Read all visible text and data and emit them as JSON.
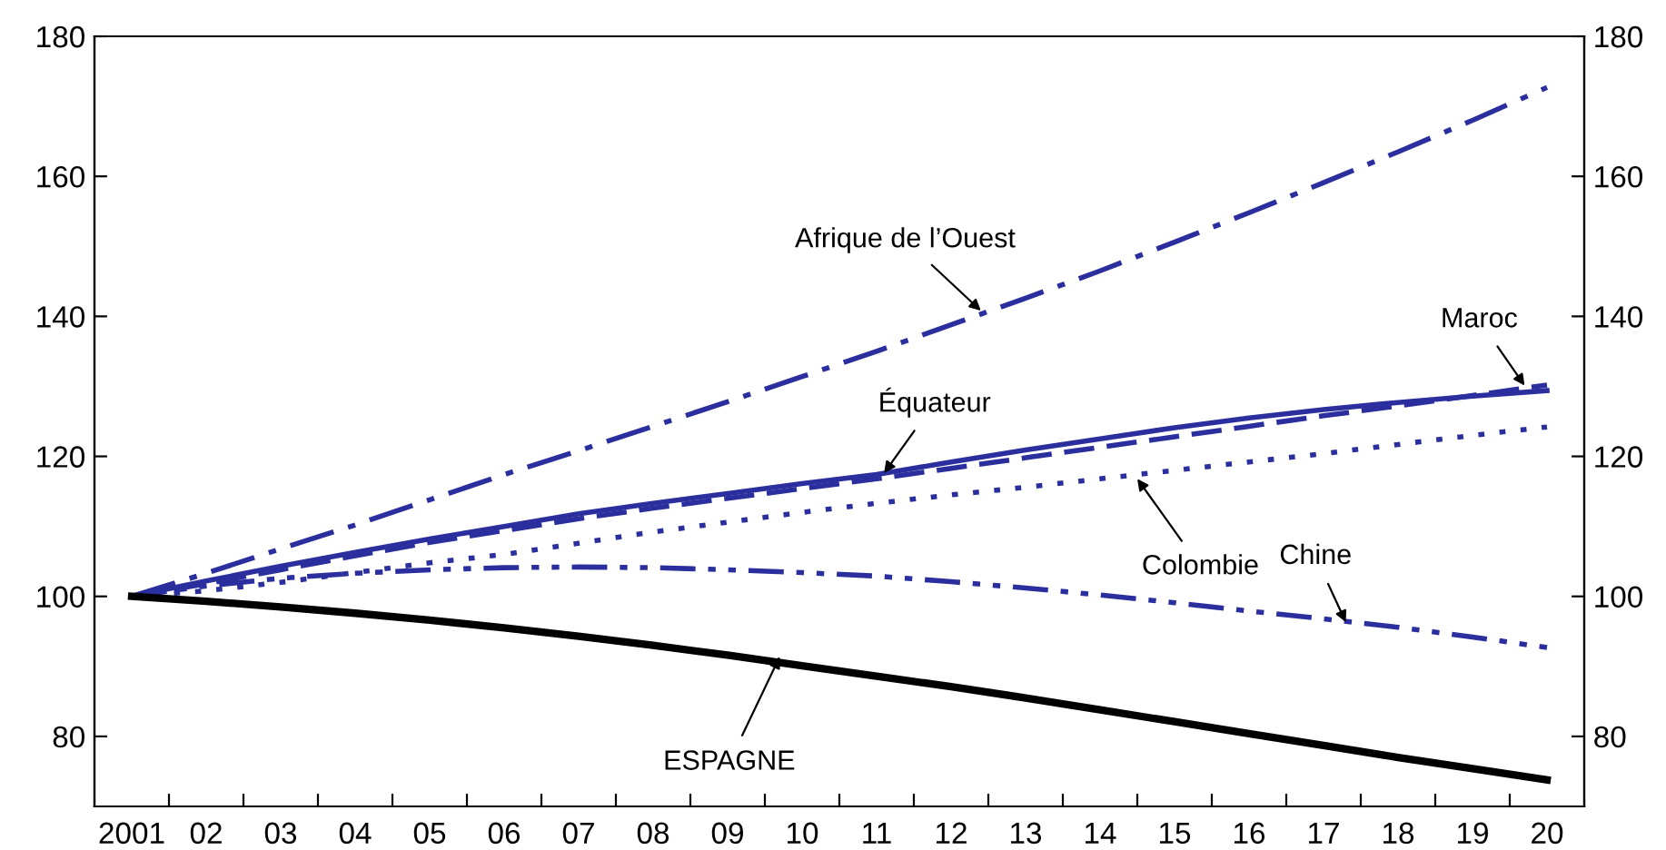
{
  "chart_data": {
    "type": "line",
    "x": [
      2001,
      2002,
      2003,
      2004,
      2005,
      2006,
      2007,
      2008,
      2009,
      2010,
      2011,
      2012,
      2013,
      2014,
      2015,
      2016,
      2017,
      2018,
      2019,
      2020
    ],
    "xlim": [
      2000.5,
      2020.5
    ],
    "xticks": [
      {
        "value": 2001,
        "label": "2001"
      },
      {
        "value": 2002,
        "label": "02"
      },
      {
        "value": 2003,
        "label": "03"
      },
      {
        "value": 2004,
        "label": "04"
      },
      {
        "value": 2005,
        "label": "05"
      },
      {
        "value": 2006,
        "label": "06"
      },
      {
        "value": 2007,
        "label": "07"
      },
      {
        "value": 2008,
        "label": "08"
      },
      {
        "value": 2009,
        "label": "09"
      },
      {
        "value": 2010,
        "label": "10"
      },
      {
        "value": 2011,
        "label": "11"
      },
      {
        "value": 2012,
        "label": "12"
      },
      {
        "value": 2013,
        "label": "13"
      },
      {
        "value": 2014,
        "label": "14"
      },
      {
        "value": 2015,
        "label": "15"
      },
      {
        "value": 2016,
        "label": "16"
      },
      {
        "value": 2017,
        "label": "17"
      },
      {
        "value": 2018,
        "label": "18"
      },
      {
        "value": 2019,
        "label": "19"
      },
      {
        "value": 2020,
        "label": "20"
      },
      {
        "value": 2001.5,
        "label": null
      },
      {
        "value": 2002.5,
        "label": null
      },
      {
        "value": 2003.5,
        "label": null
      },
      {
        "value": 2004.5,
        "label": null
      },
      {
        "value": 2005.5,
        "label": null
      },
      {
        "value": 2006.5,
        "label": null
      },
      {
        "value": 2007.5,
        "label": null
      },
      {
        "value": 2008.5,
        "label": null
      },
      {
        "value": 2009.5,
        "label": null
      },
      {
        "value": 2010.5,
        "label": null
      },
      {
        "value": 2011.5,
        "label": null
      },
      {
        "value": 2012.5,
        "label": null
      },
      {
        "value": 2013.5,
        "label": null
      },
      {
        "value": 2014.5,
        "label": null
      },
      {
        "value": 2015.5,
        "label": null
      },
      {
        "value": 2016.5,
        "label": null
      },
      {
        "value": 2017.5,
        "label": null
      },
      {
        "value": 2018.5,
        "label": null
      },
      {
        "value": 2019.5,
        "label": null
      }
    ],
    "ylim": [
      70,
      180
    ],
    "yticks": [
      80,
      100,
      120,
      140,
      160,
      180
    ],
    "y2lim": [
      70,
      180
    ],
    "y2ticks": [
      80,
      100,
      120,
      140,
      160,
      180
    ],
    "grid": false,
    "legend": false,
    "series": [
      {
        "color": "#2b2f9e",
        "line_style": "dashdot",
        "values": [
          100,
          103.3,
          106.8,
          110.2,
          113.8,
          117.4,
          120.8,
          124.3,
          127.8,
          131.4,
          135,
          138.8,
          142.6,
          146.5,
          150.6,
          154.8,
          159.1,
          163.5,
          168,
          172.7
        ]
      },
      {
        "color": "#2b2f9e",
        "line_style": "dashed",
        "values": [
          100,
          101.8,
          103.8,
          105.8,
          107.7,
          109.4,
          111.1,
          112.6,
          114,
          115.4,
          116.8,
          118.3,
          119.8,
          121.3,
          122.8,
          124.3,
          125.8,
          127.2,
          128.7,
          130.2
        ]
      },
      {
        "color": "#2b2f9e",
        "line_style": "solid",
        "values": [
          100,
          102.2,
          104.3,
          106.3,
          108.2,
          110,
          111.8,
          113.3,
          114.7,
          116.1,
          117.4,
          119.2,
          120.9,
          122.5,
          124.1,
          125.5,
          126.7,
          127.7,
          128.6,
          129.4
        ]
      },
      {
        "color": "#2b2f9e",
        "line_style": "dotted",
        "values": [
          100,
          100.8,
          102,
          103.4,
          104.8,
          106,
          107.6,
          109.2,
          110.6,
          112,
          113.3,
          114.5,
          115.6,
          116.8,
          118,
          119.2,
          120.4,
          121.7,
          123,
          124.2
        ]
      },
      {
        "color": "#2b2f9e",
        "line_style": "dashdotdot",
        "values": [
          100,
          101.5,
          102.6,
          103.3,
          103.8,
          104.1,
          104.2,
          104.1,
          103.8,
          103.4,
          102.9,
          102.1,
          101.2,
          100.2,
          99.1,
          97.9,
          96.8,
          95.6,
          94.2,
          92.7
        ]
      },
      {
        "color": "#000000",
        "line_style": "solid",
        "values": [
          100,
          99.3,
          98.5,
          97.6,
          96.6,
          95.5,
          94.3,
          93,
          91.6,
          90.1,
          88.6,
          87.1,
          85.5,
          83.8,
          82.1,
          80.4,
          78.7,
          77,
          75.4,
          73.8
        ]
      }
    ],
    "annotations": [
      {
        "text": "Afrique de l’Ouest",
        "x": 2012.4,
        "y": 140.8
      },
      {
        "text": "Maroc",
        "x": 2019.7,
        "y": 130.1
      },
      {
        "text": "Équateur",
        "x": 2011.1,
        "y": 117.6
      },
      {
        "text": "Colombie",
        "x": 2014.5,
        "y": 116.8
      },
      {
        "text": "Chine",
        "x": 2017.3,
        "y": 96.3
      },
      {
        "text": "ESPAGNE",
        "x": 2009.7,
        "y": 91.4
      }
    ]
  }
}
